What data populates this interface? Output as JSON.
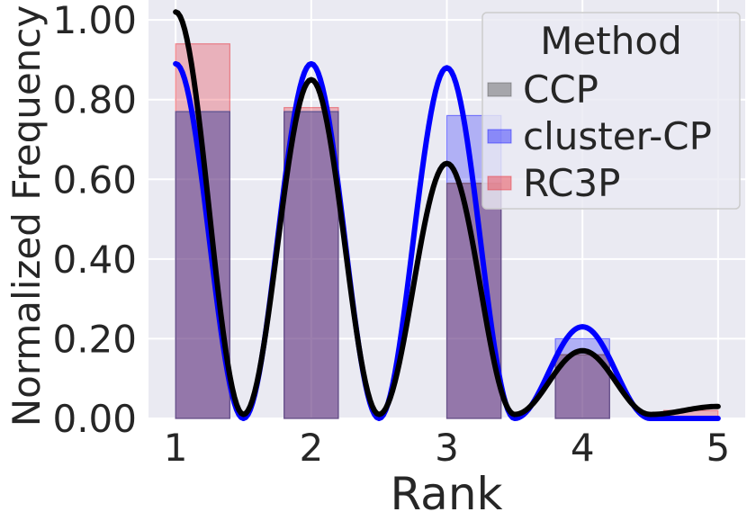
{
  "chart_data": {
    "type": "bar",
    "xlabel": "Rank",
    "ylabel": "Normalized Frequency",
    "x_ticks": [
      1,
      2,
      3,
      4,
      5
    ],
    "y_ticks": [
      "0.00",
      "0.20",
      "0.40",
      "0.60",
      "0.80",
      "1.00"
    ],
    "xlim": [
      0.8,
      5.2
    ],
    "ylim": [
      0,
      1.05
    ],
    "grid": true,
    "legend": {
      "title": "Method",
      "placement": "top-right"
    },
    "bins": [
      {
        "x0": 1.0,
        "x1": 1.4
      },
      {
        "x0": 1.8,
        "x1": 2.2
      },
      {
        "x0": 3.0,
        "x1": 3.4
      },
      {
        "x0": 3.8,
        "x1": 4.2
      },
      {
        "x0": 4.6,
        "x1": 5.0
      }
    ],
    "series": [
      {
        "name": "CCP",
        "color": "#555555",
        "bar_alpha": 0.3,
        "values": [
          0.77,
          0.77,
          0.59,
          0.16,
          0.0
        ],
        "kde": {
          "color": "#000000",
          "x": [
            1.0,
            1.5,
            2.0,
            2.5,
            3.0,
            3.5,
            4.0,
            4.5,
            5.0
          ],
          "y": [
            1.02,
            0.01,
            0.85,
            0.01,
            0.64,
            0.01,
            0.17,
            0.01,
            0.03
          ]
        }
      },
      {
        "name": "cluster-CP",
        "color": "#1a1aff",
        "bar_alpha": 0.28,
        "values": [
          0.77,
          0.77,
          0.76,
          0.2,
          0.0
        ],
        "kde": {
          "color": "#0000ff",
          "x": [
            1.0,
            1.5,
            2.0,
            2.5,
            3.0,
            3.5,
            4.0,
            4.5,
            5.0
          ],
          "y": [
            0.89,
            0.0,
            0.89,
            0.0,
            0.88,
            0.0,
            0.23,
            0.0,
            0.0
          ]
        }
      },
      {
        "name": "RC3P",
        "color": "#e8303a",
        "bar_alpha": 0.3,
        "values": [
          0.94,
          0.78,
          0.59,
          0.16,
          0.02
        ],
        "kde": null
      }
    ]
  }
}
